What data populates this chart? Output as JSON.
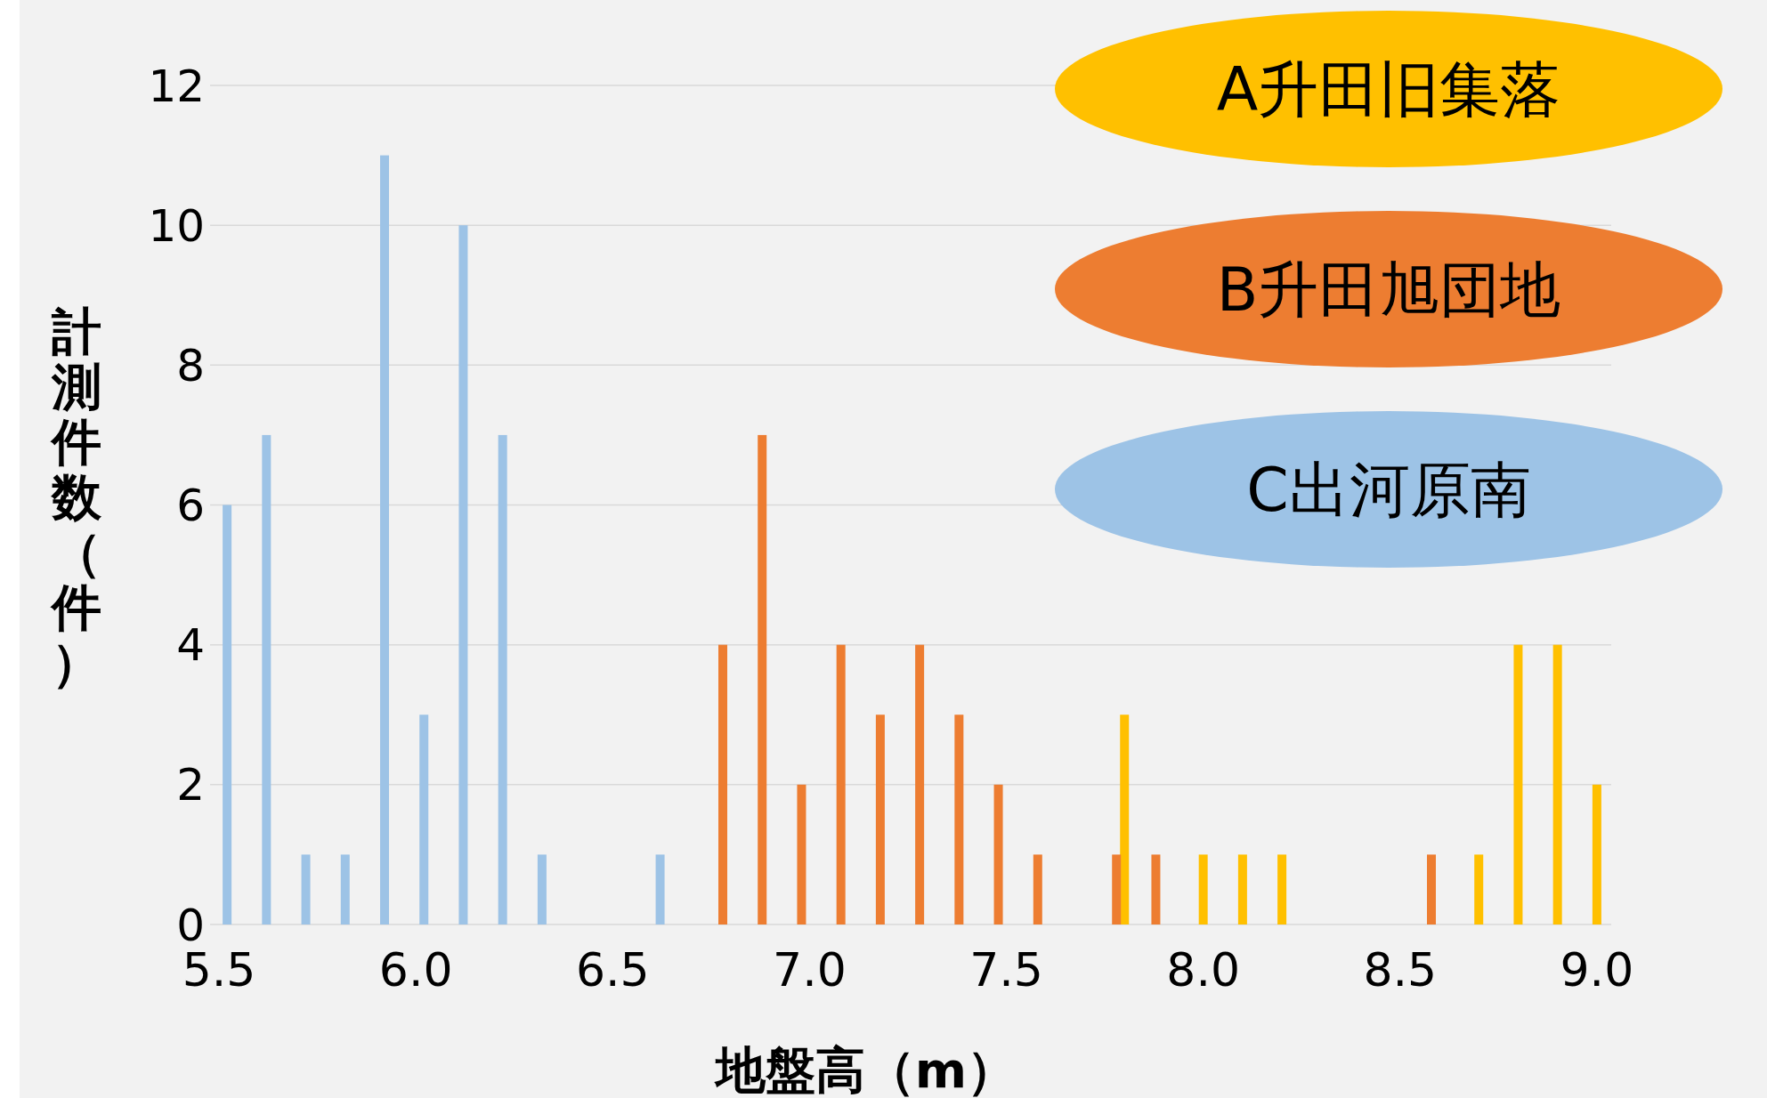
{
  "chart_data": {
    "type": "bar",
    "xlabel": "地盤高（m）",
    "ylabel": "計測件数（件）",
    "categories": [
      "5.5",
      null,
      null,
      null,
      null,
      "6.0",
      null,
      null,
      null,
      null,
      "6.5",
      null,
      null,
      null,
      null,
      "7.0",
      null,
      null,
      null,
      null,
      "7.5",
      null,
      null,
      null,
      null,
      "8.0",
      null,
      null,
      null,
      null,
      "8.5",
      null,
      null,
      null,
      null,
      "9.0"
    ],
    "series": [
      {
        "name": "A升田旧集落",
        "color": "#ffc000",
        "values": [
          0,
          0,
          0,
          0,
          0,
          0,
          0,
          0,
          0,
          0,
          0,
          0,
          0,
          0,
          0,
          0,
          0,
          0,
          0,
          0,
          0,
          0,
          0,
          3,
          0,
          1,
          1,
          1,
          0,
          0,
          0,
          0,
          1,
          4,
          4,
          2
        ]
      },
      {
        "name": "B升田旭団地",
        "color": "#ed7d31",
        "values": [
          0,
          0,
          0,
          0,
          0,
          0,
          0,
          0,
          0,
          0,
          0,
          0,
          0,
          4,
          7,
          2,
          4,
          3,
          4,
          3,
          2,
          1,
          0,
          1,
          1,
          0,
          0,
          0,
          0,
          0,
          0,
          1,
          0,
          0,
          0,
          0
        ]
      },
      {
        "name": "C出河原南",
        "color": "#9dc3e6",
        "values": [
          6,
          7,
          1,
          1,
          11,
          3,
          10,
          7,
          1,
          0,
          0,
          1,
          0,
          0,
          0,
          0,
          0,
          0,
          0,
          0,
          0,
          0,
          0,
          0,
          0,
          0,
          0,
          0,
          0,
          0,
          0,
          0,
          0,
          0,
          0,
          0
        ]
      }
    ],
    "ylim": [
      0,
      12
    ],
    "yticks": [
      0,
      2,
      4,
      6,
      8,
      10,
      12
    ],
    "grid": "y",
    "legend": "top right"
  }
}
